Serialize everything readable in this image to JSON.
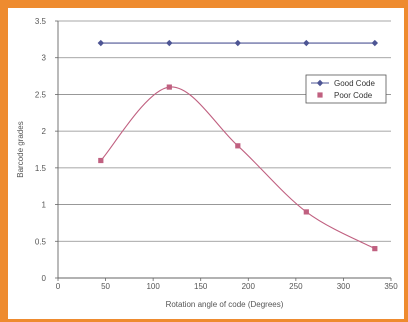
{
  "chart_data": {
    "type": "line",
    "title": "",
    "xlabel": "Rotation angle of code (Degrees)",
    "ylabel": "Barcode grades",
    "xlim": [
      0,
      350
    ],
    "ylim": [
      0,
      3.5
    ],
    "x_ticks": [
      0,
      50,
      100,
      150,
      200,
      250,
      300,
      350
    ],
    "y_ticks": [
      0,
      0.5,
      1,
      1.5,
      2,
      2.5,
      3,
      3.5
    ],
    "x_tick_labels": [
      "0",
      "50",
      "100",
      "150",
      "200",
      "250",
      "300",
      "350"
    ],
    "y_tick_labels": [
      "0",
      "0.5",
      "1",
      "1.5",
      "2",
      "2.5",
      "3",
      "3.5"
    ],
    "grid": "horizontal",
    "legend_position": "right",
    "series": [
      {
        "name": "Good Code",
        "color": "#4d5594",
        "marker": "diamond",
        "smooth": false,
        "x": [
          45,
          117,
          189,
          261,
          333
        ],
        "y": [
          3.2,
          3.2,
          3.2,
          3.2,
          3.2
        ]
      },
      {
        "name": "Poor Code",
        "color": "#c06080",
        "marker": "square",
        "smooth": true,
        "x": [
          45,
          117,
          189,
          261,
          333
        ],
        "y": [
          1.6,
          2.6,
          1.8,
          0.9,
          0.4
        ]
      }
    ]
  },
  "colors": {
    "frame": "#ee8b2f",
    "background": "#ffffff",
    "grid": "#8a8a8a"
  }
}
